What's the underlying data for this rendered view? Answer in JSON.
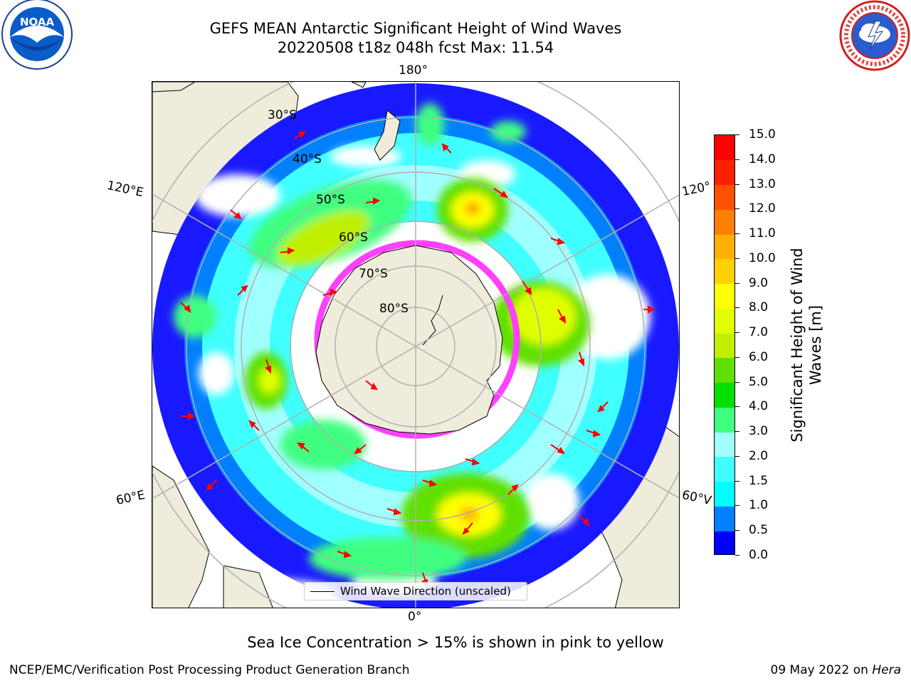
{
  "header": {
    "title_line1": "GEFS MEAN Antarctic Significant Height of Wind Waves",
    "title_line2": "20220508 t18z 048h fcst   Max: 11.54"
  },
  "logos": {
    "left": "noaa-logo",
    "right": "national-weather-service-logo"
  },
  "map": {
    "projection": "south-polar-stereographic",
    "longitude_labels": {
      "top": "180°",
      "bottom": "0°",
      "upper_left": "120°E",
      "upper_right": "120°",
      "lower_left": "60°E",
      "lower_right": "60°V"
    },
    "latitude_labels": [
      "30°S",
      "40°S",
      "50°S",
      "60°S",
      "70°S",
      "80°S"
    ],
    "legend_label": "Wind Wave Direction (unscaled)",
    "arrow_color": "#ff0000",
    "land_color": "#efecdc",
    "sea_ice_color": "#ff40ff",
    "grid_color": "#b0b0b0"
  },
  "colorbar": {
    "title_line1": "Significant Height of Wind",
    "title_line2": "Waves [m]",
    "tick_labels": [
      "0.0",
      "0.5",
      "1.0",
      "1.5",
      "2.0",
      "3.0",
      "4.0",
      "5.0",
      "6.0",
      "7.0",
      "8.0",
      "9.0",
      "10.0",
      "11.0",
      "12.0",
      "13.0",
      "14.0",
      "15.0"
    ],
    "colors": [
      "#0000ff",
      "#0080ff",
      "#00ffff",
      "#40ffff",
      "#a0ffff",
      "#40ff80",
      "#00e000",
      "#60e000",
      "#c0f000",
      "#e0ff00",
      "#ffff00",
      "#ffd000",
      "#ffb000",
      "#ff8000",
      "#ff5000",
      "#ff2000",
      "#ff0000"
    ]
  },
  "footer": {
    "sea_ice_note": "Sea Ice Concentration > 15% is shown in pink to yellow",
    "credit_left": "NCEP/EMC/Verification Post Processing Product Generation Branch",
    "credit_right_date": "09 May 2022 on",
    "credit_right_machine": "Hera"
  }
}
